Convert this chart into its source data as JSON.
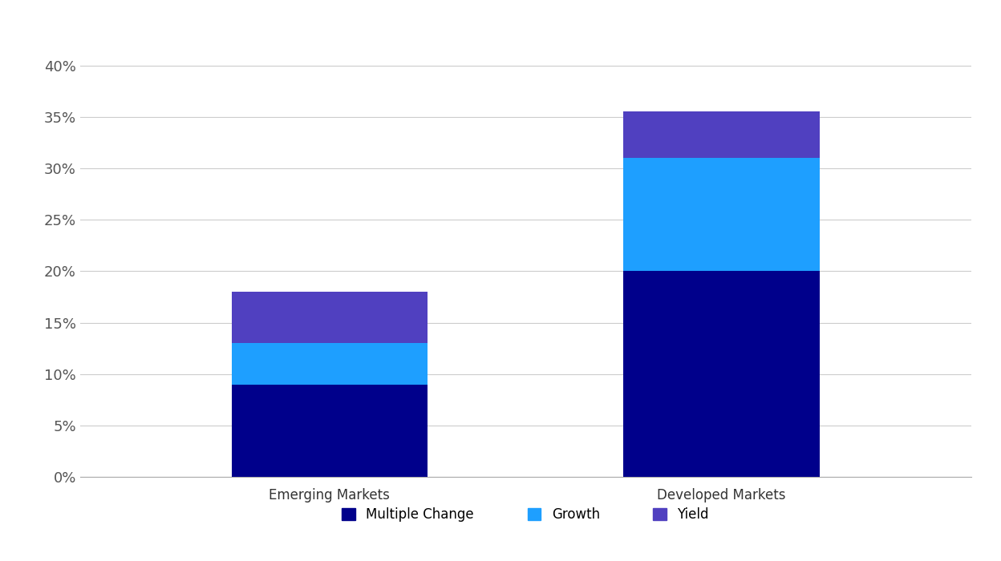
{
  "categories": [
    "Emerging Markets",
    "Developed Markets"
  ],
  "multiple_change": [
    9.0,
    20.0
  ],
  "growth": [
    4.0,
    11.0
  ],
  "yield": [
    5.0,
    4.5
  ],
  "color_multiple_change": "#00008B",
  "color_growth": "#1E9FFF",
  "color_yield": "#5040C0",
  "legend_labels": [
    "Multiple Change",
    "Growth",
    "Yield"
  ],
  "ylim": [
    0,
    0.42
  ],
  "yticks": [
    0.0,
    0.05,
    0.1,
    0.15,
    0.2,
    0.25,
    0.3,
    0.35,
    0.4
  ],
  "ytick_labels": [
    "0%",
    "5%",
    "10%",
    "15%",
    "20%",
    "25%",
    "30%",
    "35%",
    "40%"
  ],
  "background_color": "#ffffff",
  "bar_width": 0.22,
  "bar_positions": [
    0.28,
    0.72
  ],
  "xlim": [
    0.0,
    1.0
  ],
  "grid_color": "#cccccc",
  "tick_label_fontsize": 13,
  "legend_fontsize": 12,
  "category_fontsize": 12
}
